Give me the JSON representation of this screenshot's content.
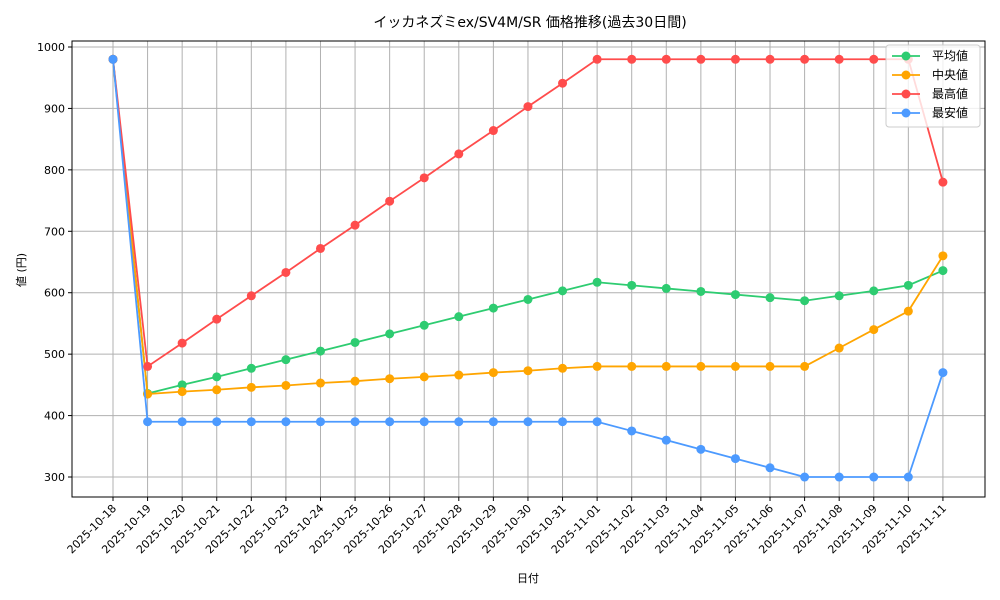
{
  "chart_data": {
    "type": "line",
    "title": "イッカネズミex/SV4M/SR 価格推移(過去30日間)",
    "xlabel": "日付",
    "ylabel": "値 (円)",
    "ylim": [
      270,
      1010
    ],
    "yticks": [
      300,
      400,
      500,
      600,
      700,
      800,
      900,
      1000
    ],
    "grid": true,
    "legend_position": "upper right",
    "categories": [
      "2025-10-18",
      "2025-10-19",
      "2025-10-20",
      "2025-10-21",
      "2025-10-22",
      "2025-10-23",
      "2025-10-24",
      "2025-10-25",
      "2025-10-26",
      "2025-10-27",
      "2025-10-28",
      "2025-10-29",
      "2025-10-30",
      "2025-10-31",
      "2025-11-01",
      "2025-11-02",
      "2025-11-03",
      "2025-11-04",
      "2025-11-05",
      "2025-11-06",
      "2025-11-07",
      "2025-11-08",
      "2025-11-09",
      "2025-11-10",
      "2025-11-11"
    ],
    "series": [
      {
        "name": "平均値",
        "color": "#2ecc71",
        "values": [
          980,
          436,
          450,
          463,
          477,
          491,
          505,
          519,
          533,
          547,
          561,
          575,
          589,
          603,
          617,
          612,
          607,
          602,
          597,
          592,
          587,
          595,
          603,
          612,
          636
        ]
      },
      {
        "name": "中央値",
        "color": "#ffa500",
        "values": [
          980,
          435,
          439,
          442,
          446,
          449,
          453,
          456,
          460,
          463,
          466,
          470,
          473,
          477,
          480,
          480,
          480,
          480,
          480,
          480,
          480,
          510,
          540,
          570,
          660
        ]
      },
      {
        "name": "最高値",
        "color": "#ff4c4c",
        "values": [
          980,
          480,
          518,
          557,
          595,
          633,
          672,
          710,
          749,
          787,
          826,
          864,
          903,
          941,
          980,
          980,
          980,
          980,
          980,
          980,
          980,
          980,
          980,
          980,
          780
        ]
      },
      {
        "name": "最安値",
        "color": "#4c9aff",
        "values": [
          980,
          390,
          390,
          390,
          390,
          390,
          390,
          390,
          390,
          390,
          390,
          390,
          390,
          390,
          390,
          375,
          360,
          345,
          330,
          315,
          300,
          300,
          300,
          300,
          470
        ]
      }
    ]
  }
}
